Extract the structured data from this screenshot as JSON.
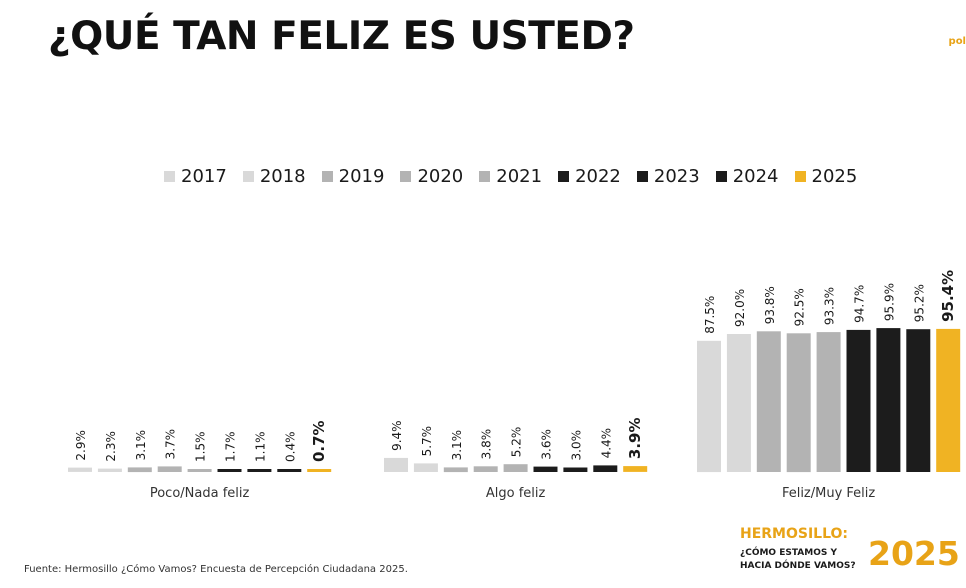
{
  "title": "¿QUÉ TAN FELIZ ES USTED?",
  "corner_logo": "pol",
  "source": "Fuente: Hermosillo ¿Cómo Vamos? Encuesta de Percepción Ciudadana 2025.",
  "brand": {
    "title": "HERMOSILLO:",
    "line1": "¿CÓMO ESTAMOS Y",
    "line2": "HACIA DÓNDE VAMOS?",
    "year": "2025"
  },
  "colors": {
    "light_gray": "#d9d9d9",
    "mid_gray": "#b3b3b3",
    "black": "#1c1c1c",
    "accent": "#f0b323"
  },
  "legend": [
    {
      "label": "2017",
      "color": "#d9d9d9"
    },
    {
      "label": "2018",
      "color": "#d9d9d9"
    },
    {
      "label": "2019",
      "color": "#b3b3b3"
    },
    {
      "label": "2020",
      "color": "#b3b3b3"
    },
    {
      "label": "2021",
      "color": "#b3b3b3"
    },
    {
      "label": "2022",
      "color": "#1c1c1c"
    },
    {
      "label": "2023",
      "color": "#1c1c1c"
    },
    {
      "label": "2024",
      "color": "#1c1c1c"
    },
    {
      "label": "2025",
      "color": "#f0b323"
    }
  ],
  "chart_data": {
    "type": "bar",
    "title": "¿QUÉ TAN FELIZ ES USTED?",
    "categories": [
      "Poco/Nada feliz",
      "Algo feliz",
      "Feliz/Muy Feliz"
    ],
    "unit": "%",
    "ylim": [
      0,
      100
    ],
    "grid": false,
    "legend_position": "top",
    "series": [
      {
        "name": "2017",
        "values": [
          2.9,
          9.4,
          87.5
        ],
        "labels": [
          "2.9%",
          "9.4%",
          "87.5%"
        ]
      },
      {
        "name": "2018",
        "values": [
          2.3,
          5.7,
          92.0
        ],
        "labels": [
          "2.3%",
          "5.7%",
          "92.0%"
        ]
      },
      {
        "name": "2019",
        "values": [
          3.1,
          3.1,
          93.8
        ],
        "labels": [
          "3.1%",
          "3.1%",
          "93.8%"
        ]
      },
      {
        "name": "2020",
        "values": [
          3.7,
          3.8,
          92.5
        ],
        "labels": [
          "3.7%",
          "3.8%",
          "92.5%"
        ]
      },
      {
        "name": "2021",
        "values": [
          1.5,
          5.2,
          93.3
        ],
        "labels": [
          "1.5%",
          "5.2%",
          "93.3%"
        ]
      },
      {
        "name": "2022",
        "values": [
          1.7,
          3.6,
          94.7
        ],
        "labels": [
          "1.7%",
          "3.6%",
          "94.7%"
        ]
      },
      {
        "name": "2023",
        "values": [
          1.1,
          3.0,
          95.9
        ],
        "labels": [
          "1.1%",
          "3.0%",
          "95.9%"
        ]
      },
      {
        "name": "2024",
        "values": [
          0.4,
          4.4,
          95.2
        ],
        "labels": [
          "0.4%",
          "4.4%",
          "95.2%"
        ]
      },
      {
        "name": "2025",
        "values": [
          0.7,
          3.9,
          95.4
        ],
        "labels": [
          "0.7%",
          "3.9%",
          "95.4%"
        ]
      }
    ]
  }
}
